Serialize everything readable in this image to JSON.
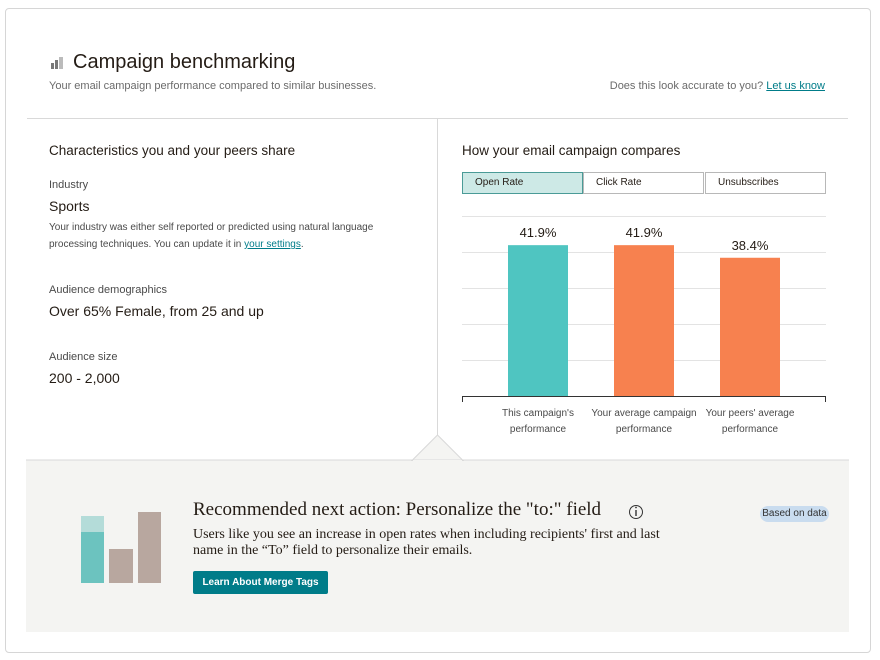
{
  "header": {
    "title": "Campaign benchmarking",
    "subtitle": "Your email campaign performance compared to similar businesses.",
    "feedback_prompt": "Does this look accurate to you?",
    "feedback_link": "Let us know"
  },
  "characteristics": {
    "heading": "Characteristics you and your peers share",
    "industry_label": "Industry",
    "industry": "Sports",
    "industry_note": "Your industry was either self reported or predicted using natural language processing techniques. You can update it in",
    "industry_note_link": "your settings",
    "industry_note_end": ".",
    "demographics_label": "Audience demographics",
    "demographics": "Over 65% Female, from 25 and up",
    "size_label": "Audience size",
    "size": "200 - 2,000"
  },
  "comparison": {
    "heading": "How your email campaign compares",
    "tabs": [
      "Open Rate",
      "Click Rate",
      "Unsubscribes"
    ]
  },
  "chart_data": {
    "type": "bar",
    "categories": [
      "This campaign's performance",
      "Your average campaign performance",
      "Your peers' average performance"
    ],
    "values": [
      41.9,
      41.9,
      38.4
    ],
    "value_labels": [
      "41.9%",
      "41.9%",
      "38.4%"
    ],
    "colors": [
      "#4fc5c1",
      "#f7814f",
      "#f7814f"
    ],
    "ylim": [
      0,
      50
    ],
    "yticks": [
      0,
      10,
      20,
      30,
      40,
      50
    ],
    "grid": true
  },
  "recommendation": {
    "title": "Recommended next action: Personalize the \"to:\" field",
    "body": "Users like you see an increase in open rates when including recipients' first and last name in the “To” field to personalize their emails.",
    "button": "Learn About Merge Tags",
    "badge": "Based on data"
  }
}
